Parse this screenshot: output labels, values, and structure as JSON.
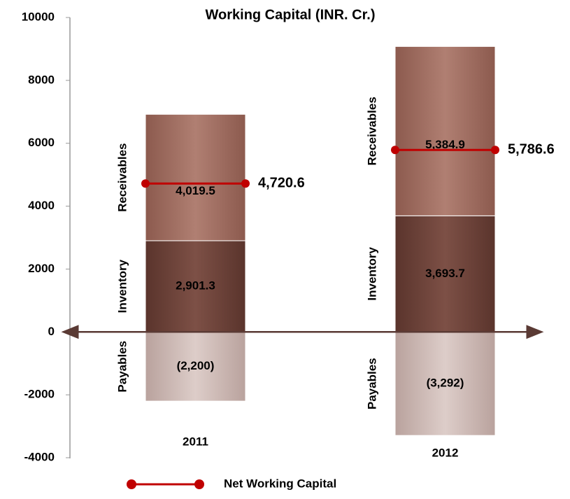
{
  "chart_data": {
    "type": "bar",
    "stacked": true,
    "title": "Working Capital (INR. Cr.)",
    "categories": [
      "2011",
      "2012"
    ],
    "ylim": [
      -4000,
      10000
    ],
    "yticks": [
      10000,
      8000,
      6000,
      4000,
      2000,
      0,
      -2000,
      -4000
    ],
    "series": [
      {
        "name": "Payables",
        "color": "#cdb7b2",
        "values": [
          -2200,
          -3292
        ],
        "value_labels": [
          "(2,200)",
          "(3,292)"
        ]
      },
      {
        "name": "Inventory",
        "color": "#6e433a",
        "values": [
          2901.3,
          3693.7
        ],
        "value_labels": [
          "2,901.3",
          "3,693.7"
        ]
      },
      {
        "name": "Receivables",
        "color": "#9e6b5e",
        "values": [
          4019.5,
          5384.9
        ],
        "value_labels": [
          "4,019.5",
          "5,384.9"
        ]
      },
      {
        "name": "Net Working Capital",
        "type": "line",
        "color": "#c00000",
        "values": [
          4720.6,
          5786.6
        ],
        "value_labels": [
          "4,720.6",
          "5,786.6"
        ]
      }
    ]
  }
}
